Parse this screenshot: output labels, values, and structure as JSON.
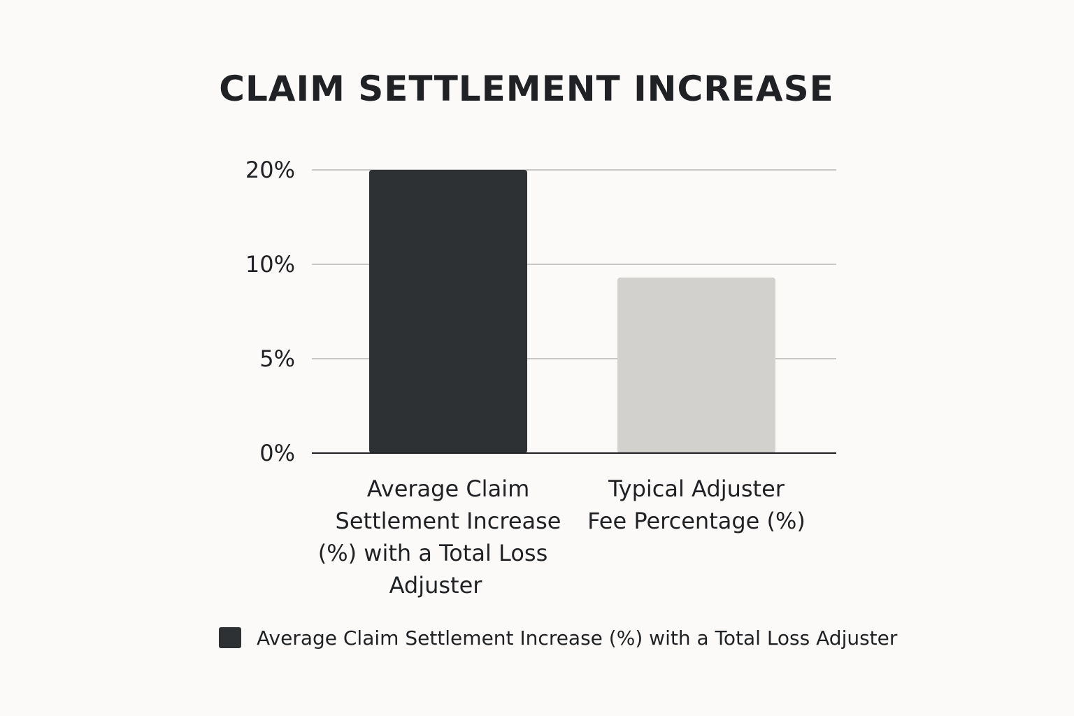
{
  "chart_data": {
    "type": "bar",
    "title": "CLAIM SETTLEMENT INCREASE",
    "xlabel": "",
    "ylabel": "",
    "categories": [
      [
        "Average Claim",
        "Settlement Increase",
        "(%) with a Total Loss",
        "Adjuster"
      ],
      [
        "Typical Adjuster",
        "Fee Percentage (%)"
      ]
    ],
    "values": [
      20,
      9.3
    ],
    "bar_colors": [
      "#2e3134",
      "#d3d1cd"
    ],
    "y_ticks": [
      {
        "value": 0,
        "label": "0%"
      },
      {
        "value": 5,
        "label": "5%"
      },
      {
        "value": 10,
        "label": "10%"
      },
      {
        "value": 20,
        "label": "20%"
      }
    ],
    "grid": true,
    "legend": {
      "position": "bottom",
      "entries": [
        {
          "label": "Average Claim Settlement Increase (%) with a Total Loss Adjuster",
          "color": "#2e3134"
        }
      ]
    },
    "colors": {
      "background": "#fbfaf8",
      "gridline": "#a9a9a9",
      "axis": "#1f2124",
      "text": "#1f2124"
    }
  }
}
